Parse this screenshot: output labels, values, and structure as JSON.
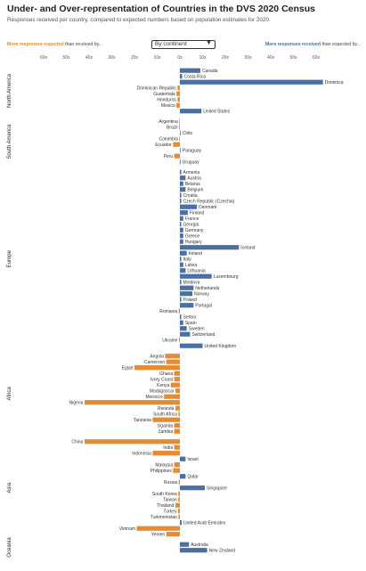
{
  "title": "Under- and Over-representation of Countries in the DVS 2020 Census",
  "subtitle": "Responses received per country, compared to expected numbers based on population estimates for 2020.",
  "legend": {
    "left_strong": "More responses expected",
    "left_rest": " than received by...",
    "right_strong": "More responses received",
    "right_rest": " than expected by..."
  },
  "dropdown": {
    "selected": "By continent"
  },
  "colors": {
    "under": "#e88a2d",
    "over": "#4a6fa5"
  },
  "chart_data": {
    "type": "bar",
    "orientation": "horizontal",
    "axis": {
      "range": [
        -60,
        60
      ],
      "ticks": [
        -60,
        -50,
        -40,
        -30,
        -20,
        -10,
        0,
        10,
        20,
        30,
        40,
        50,
        60
      ],
      "tick_labels": [
        "60x",
        "50x",
        "40x",
        "30x",
        "20x",
        "10x",
        "0x",
        "10x",
        "20x",
        "30x",
        "40x",
        "50x",
        "60x"
      ]
    },
    "groups": [
      {
        "name": "North America",
        "rows": [
          [
            "Canada",
            9
          ],
          [
            "Costa Rica",
            1
          ],
          [
            "Dominica",
            63
          ],
          [
            "Dominican Republic",
            -1
          ],
          [
            "Guatemala",
            -1.5
          ],
          [
            "Honduros",
            -1
          ],
          [
            "Mexico",
            -1.5
          ],
          [
            "United States",
            9.5
          ]
        ]
      },
      {
        "name": "South America",
        "rows": [
          [
            "Argentina",
            -0.3
          ],
          [
            "Brazil",
            -0.4
          ],
          [
            "Chile",
            0.3
          ],
          [
            "Colombia",
            -0.3
          ],
          [
            "Ecuador",
            -3
          ],
          [
            "Paraguay",
            0.3
          ],
          [
            "Peru",
            -2.5
          ],
          [
            "Uruguay",
            0.3
          ]
        ]
      },
      {
        "name": "Europe",
        "rows": [
          [
            "Armenia",
            0.6
          ],
          [
            "Austria",
            2.5
          ],
          [
            "Belarus",
            1.5
          ],
          [
            "Belgium",
            2.5
          ],
          [
            "Croatia",
            0.6
          ],
          [
            "Czech Republic (Czechia)",
            0.6
          ],
          [
            "Denmark",
            7.5
          ],
          [
            "Finland",
            3.5
          ],
          [
            "France",
            1.5
          ],
          [
            "Georgia",
            0.6
          ],
          [
            "Germany",
            1.5
          ],
          [
            "Greece",
            1.5
          ],
          [
            "Hungary",
            1.5
          ],
          [
            "Iceland",
            26
          ],
          [
            "Ireland",
            3
          ],
          [
            "Italy",
            0.6
          ],
          [
            "Latvia",
            1.5
          ],
          [
            "Lithuania",
            2.5
          ],
          [
            "Luxembourg",
            14
          ],
          [
            "Moldova",
            0.6
          ],
          [
            "Netherlands",
            6
          ],
          [
            "Norway",
            5.5
          ],
          [
            "Poland",
            0.6
          ],
          [
            "Portugal",
            6
          ],
          [
            "Romania",
            -0.5
          ],
          [
            "Serbia",
            0.6
          ],
          [
            "Spain",
            1.5
          ],
          [
            "Sweden",
            3
          ],
          [
            "Switzerland",
            4.5
          ],
          [
            "Ukraine",
            -0.4
          ],
          [
            "United Kingdom",
            10
          ]
        ]
      },
      {
        "name": "Africa",
        "rows": [
          [
            "Angola",
            -6.5
          ],
          [
            "Cameroon",
            -6
          ],
          [
            "Egypt",
            -20
          ],
          [
            "Ghana",
            -2.5
          ],
          [
            "Ivory Coast",
            -2.5
          ],
          [
            "Kenya",
            -4
          ],
          [
            "Madagascar",
            -2
          ],
          [
            "Morocco",
            -7
          ],
          [
            "Nigeria",
            -42
          ],
          [
            "Rwanda",
            -2
          ],
          [
            "South Africa",
            -0.6
          ],
          [
            "Tanzania",
            -12
          ],
          [
            "Uganda",
            -2.5
          ],
          [
            "Zambia",
            -2.5
          ]
        ]
      },
      {
        "name": "Asia",
        "rows": [
          [
            "China",
            -42
          ],
          [
            "India",
            -2.5
          ],
          [
            "Indonesia",
            -12
          ],
          [
            "Israel",
            2.5
          ],
          [
            "Malaysia",
            -2.5
          ],
          [
            "Philippines",
            -3
          ],
          [
            "Qatar",
            2.5
          ],
          [
            "Russia",
            -0.5
          ],
          [
            "Singapore",
            11
          ],
          [
            "South Korea",
            -0.7
          ],
          [
            "Taiwan",
            -0.7
          ],
          [
            "Thailand",
            -2
          ],
          [
            "Turkey",
            -0.8
          ],
          [
            "Turkmenistan",
            -0.6
          ],
          [
            "United Arab Emirates",
            0.8
          ],
          [
            "Vietnam",
            -19
          ],
          [
            "Yemen",
            -6
          ]
        ]
      },
      {
        "name": "Oceania",
        "rows": [
          [
            "Australia",
            4
          ],
          [
            "New Zealand",
            12
          ]
        ]
      }
    ]
  }
}
